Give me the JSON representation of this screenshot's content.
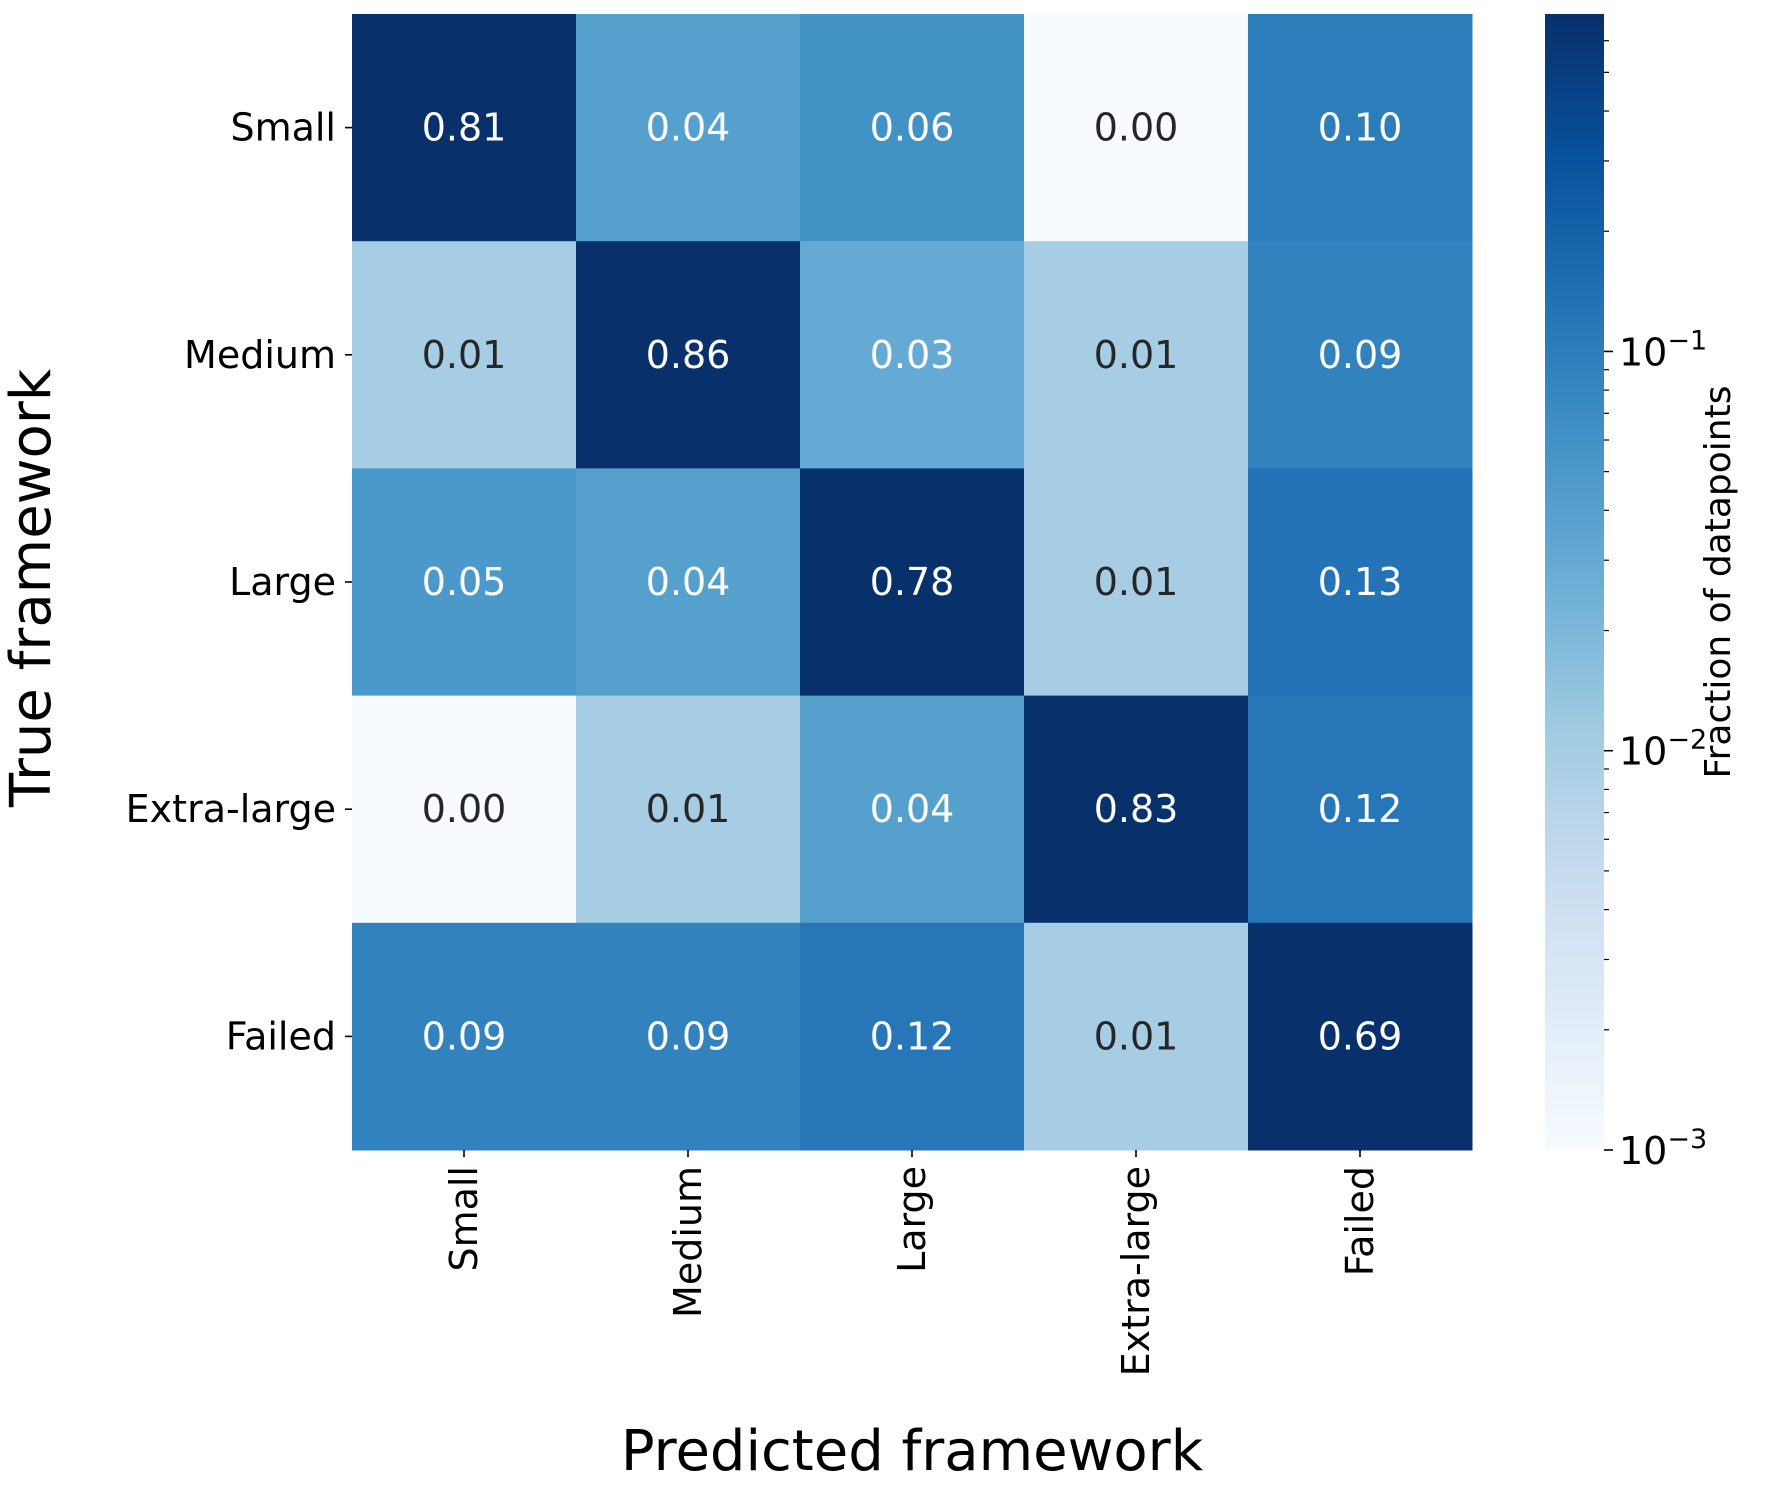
{
  "chart_data": {
    "type": "heatmap",
    "x_categories": [
      "Small",
      "Medium",
      "Large",
      "Extra-large",
      "Failed"
    ],
    "y_categories": [
      "Small",
      "Medium",
      "Large",
      "Extra-large",
      "Failed"
    ],
    "values": [
      [
        0.81,
        0.04,
        0.06,
        0.0,
        0.1
      ],
      [
        0.01,
        0.86,
        0.03,
        0.01,
        0.09
      ],
      [
        0.05,
        0.04,
        0.78,
        0.01,
        0.13
      ],
      [
        0.0,
        0.01,
        0.04,
        0.83,
        0.12
      ],
      [
        0.09,
        0.09,
        0.12,
        0.01,
        0.69
      ]
    ],
    "value_format": "0.00",
    "xlabel": "Predicted framework",
    "ylabel": "True framework",
    "colorbar": {
      "label": "Fraction of datapoints",
      "scale": "log",
      "colormap": "Blues",
      "range": [
        0.001,
        0.7
      ],
      "ticks": [
        {
          "value": 0.1,
          "label_base": "10",
          "label_exp": "−1"
        },
        {
          "value": 0.01,
          "label_base": "10",
          "label_exp": "−2"
        },
        {
          "value": 0.001,
          "label_base": "10",
          "label_exp": "−3"
        }
      ]
    },
    "colors": {
      "annotation_light": "#ffffff",
      "annotation_dark": "#262626"
    }
  }
}
